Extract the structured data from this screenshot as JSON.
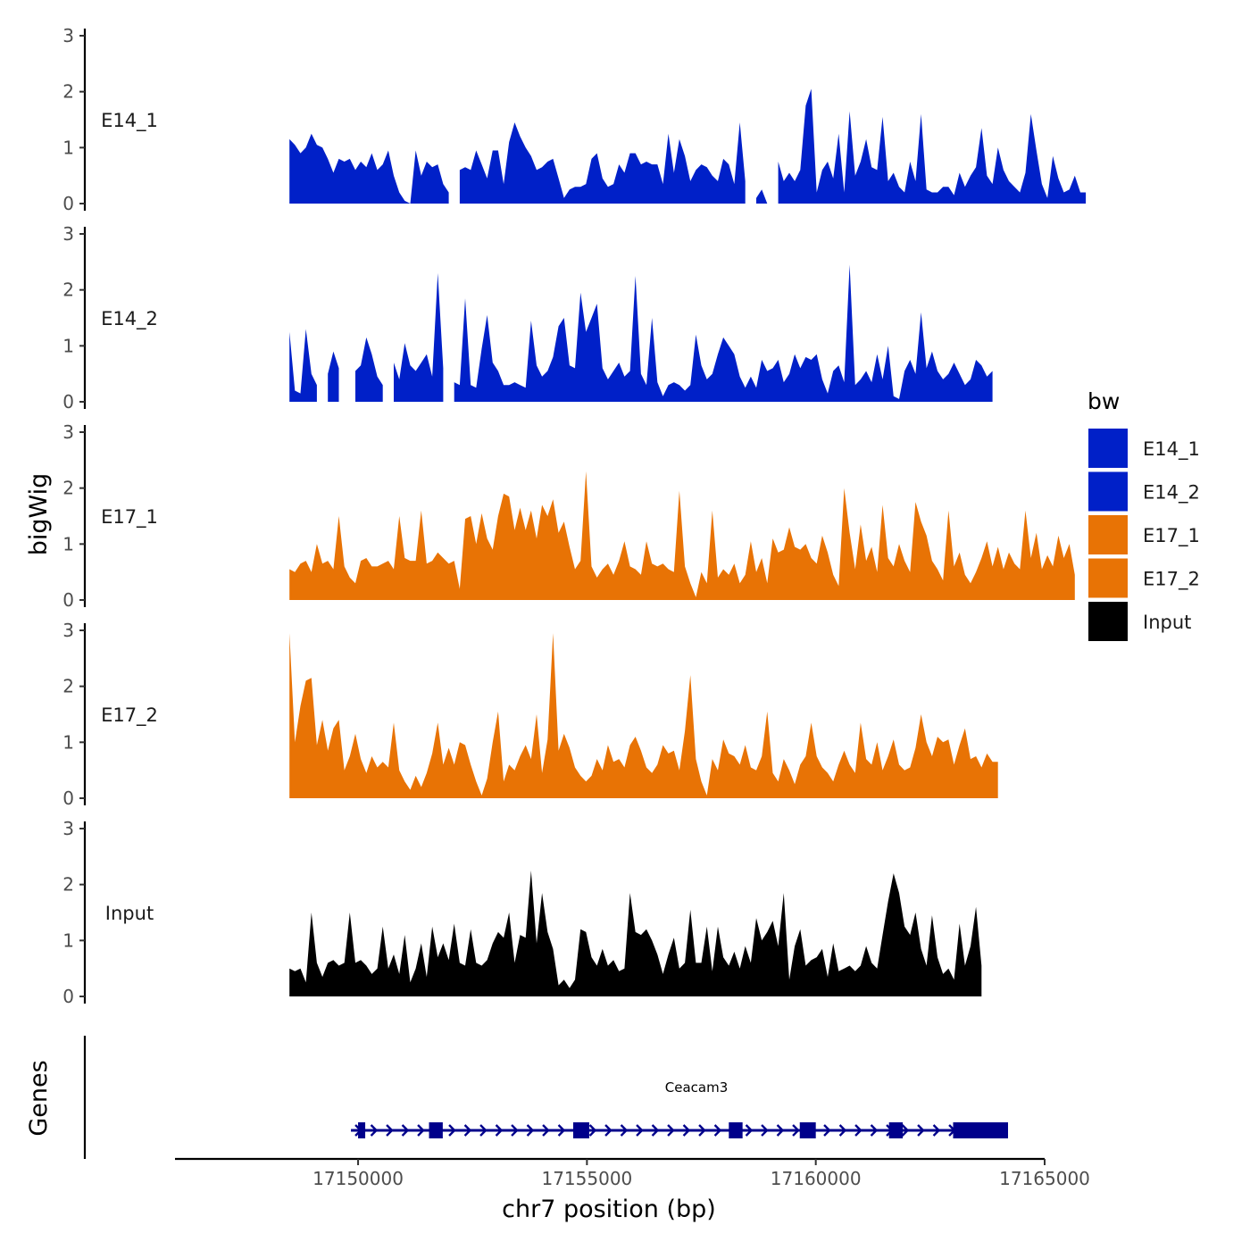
{
  "chart_data": {
    "type": "area",
    "y_axis_title": "bigWig",
    "genes_axis_title": "Genes",
    "x_axis_title": "chr7 position (bp)",
    "xlim": [
      17146000,
      17165000
    ],
    "x_ticks": [
      17150000,
      17155000,
      17160000,
      17165000
    ],
    "x_tick_labels": [
      "17150000",
      "17155000",
      "17160000",
      "17165000"
    ],
    "ylim": [
      0,
      3
    ],
    "y_ticks": [
      0,
      1,
      2,
      3
    ],
    "y_tick_labels": [
      "0",
      "1",
      "2",
      "3"
    ],
    "legend": {
      "title": "bw",
      "position": "right",
      "entries": [
        {
          "label": "E14_1",
          "color": "#0020C8"
        },
        {
          "label": "E14_2",
          "color": "#0020C8"
        },
        {
          "label": "E17_1",
          "color": "#E87305"
        },
        {
          "label": "E17_2",
          "color": "#E87305"
        },
        {
          "label": "Input",
          "color": "#000000"
        }
      ]
    },
    "x_start": 17148500,
    "x_step": 120,
    "tracks": [
      {
        "name": "E14_1",
        "color": "#0020C8",
        "values": [
          1.15,
          1.05,
          0.9,
          1.0,
          1.25,
          1.05,
          1.0,
          0.8,
          0.55,
          0.8,
          0.75,
          0.8,
          0.6,
          0.75,
          0.65,
          0.9,
          0.6,
          0.7,
          0.95,
          0.5,
          0.2,
          0.05,
          0.0,
          0.95,
          0.5,
          0.75,
          0.65,
          0.7,
          0.35,
          0.2,
          null,
          0.6,
          0.65,
          0.6,
          0.95,
          0.7,
          0.45,
          0.95,
          0.95,
          0.35,
          1.1,
          1.45,
          1.2,
          1.0,
          0.85,
          0.6,
          0.65,
          0.75,
          0.8,
          0.45,
          0.1,
          0.25,
          0.3,
          0.3,
          0.35,
          0.8,
          0.9,
          0.45,
          0.3,
          0.35,
          0.7,
          0.55,
          0.9,
          0.9,
          0.7,
          0.75,
          0.7,
          0.7,
          0.35,
          1.25,
          0.55,
          1.15,
          0.85,
          0.4,
          0.6,
          0.7,
          0.65,
          0.5,
          0.4,
          0.8,
          0.7,
          0.35,
          1.45,
          0.4,
          null,
          0.1,
          0.25,
          0.0,
          null,
          0.75,
          0.4,
          0.55,
          0.4,
          0.6,
          1.75,
          2.05,
          0.2,
          0.6,
          0.75,
          0.45,
          1.25,
          0.2,
          1.65,
          0.5,
          0.75,
          1.15,
          0.65,
          0.6,
          1.55,
          0.4,
          0.55,
          0.3,
          0.2,
          0.75,
          0.4,
          1.6,
          0.25,
          0.2,
          0.2,
          0.3,
          0.3,
          0.15,
          0.55,
          0.3,
          0.5,
          0.65,
          1.35,
          0.5,
          0.35,
          1.0,
          0.6,
          0.4,
          0.3,
          0.2,
          0.55,
          1.6,
          0.95,
          0.35,
          0.1,
          0.85,
          0.45,
          0.2,
          0.25,
          0.5,
          0.2,
          0.2
        ]
      },
      {
        "name": "E14_2",
        "color": "#0020C8",
        "values": [
          1.25,
          0.2,
          0.15,
          1.3,
          0.5,
          0.3,
          null,
          0.5,
          0.9,
          0.6,
          null,
          null,
          0.55,
          0.65,
          1.15,
          0.85,
          0.45,
          0.3,
          null,
          0.7,
          0.4,
          1.05,
          0.65,
          0.55,
          0.7,
          0.85,
          0.45,
          2.3,
          0.6,
          null,
          0.35,
          0.3,
          1.85,
          0.3,
          0.25,
          0.95,
          1.55,
          0.7,
          0.55,
          0.3,
          0.3,
          0.35,
          0.3,
          0.25,
          1.45,
          0.65,
          0.45,
          0.55,
          0.8,
          1.35,
          1.5,
          0.65,
          0.6,
          1.95,
          1.25,
          1.5,
          1.75,
          0.6,
          0.4,
          0.55,
          0.7,
          0.45,
          0.55,
          2.25,
          0.5,
          0.3,
          1.5,
          0.35,
          0.1,
          0.3,
          0.35,
          0.3,
          0.2,
          0.3,
          1.2,
          0.65,
          0.4,
          0.5,
          0.85,
          1.15,
          1.0,
          0.85,
          0.45,
          0.25,
          0.45,
          0.25,
          0.75,
          0.55,
          0.6,
          0.75,
          0.35,
          0.5,
          0.85,
          0.6,
          0.8,
          0.75,
          0.85,
          0.4,
          0.15,
          0.55,
          0.65,
          0.35,
          2.45,
          0.3,
          0.4,
          0.55,
          0.35,
          0.85,
          0.4,
          1.0,
          0.1,
          0.05,
          0.55,
          0.75,
          0.5,
          1.6,
          0.6,
          0.9,
          0.55,
          0.4,
          0.5,
          0.7,
          0.5,
          0.3,
          0.4,
          0.75,
          0.65,
          0.45,
          0.55
        ]
      },
      {
        "name": "E17_1",
        "color": "#E87305",
        "values": [
          0.55,
          0.5,
          0.65,
          0.7,
          0.5,
          1.0,
          0.65,
          0.7,
          0.55,
          1.5,
          0.6,
          0.4,
          0.3,
          0.7,
          0.75,
          0.6,
          0.6,
          0.65,
          0.7,
          0.55,
          1.5,
          0.75,
          0.7,
          0.7,
          1.6,
          0.65,
          0.7,
          0.85,
          0.75,
          0.65,
          0.7,
          0.2,
          1.45,
          1.5,
          1.0,
          1.55,
          1.1,
          0.9,
          1.5,
          1.9,
          1.85,
          1.25,
          1.65,
          1.25,
          1.6,
          1.1,
          1.7,
          1.5,
          1.8,
          1.2,
          1.4,
          0.95,
          0.55,
          0.7,
          2.3,
          0.6,
          0.4,
          0.55,
          0.65,
          0.45,
          0.7,
          1.05,
          0.6,
          0.55,
          0.45,
          1.05,
          0.65,
          0.6,
          0.65,
          0.55,
          0.5,
          1.95,
          0.6,
          0.3,
          0.05,
          0.5,
          0.3,
          1.6,
          0.4,
          0.55,
          0.45,
          0.65,
          0.3,
          0.45,
          1.05,
          0.5,
          0.75,
          0.3,
          1.1,
          0.85,
          0.9,
          1.3,
          0.95,
          0.9,
          1.0,
          0.75,
          0.65,
          1.15,
          0.85,
          0.45,
          0.25,
          2.0,
          1.2,
          0.55,
          1.35,
          0.7,
          0.95,
          0.5,
          1.7,
          0.75,
          0.6,
          1.0,
          0.7,
          0.5,
          1.75,
          1.4,
          1.15,
          0.7,
          0.55,
          0.35,
          1.6,
          0.6,
          0.85,
          0.45,
          0.3,
          0.5,
          0.75,
          1.05,
          0.6,
          0.95,
          0.55,
          0.85,
          0.65,
          0.55,
          1.6,
          0.75,
          1.2,
          0.55,
          0.8,
          0.6,
          1.15,
          0.75,
          1.0,
          0.45
        ]
      },
      {
        "name": "E17_2",
        "color": "#E87305",
        "values": [
          2.95,
          1.0,
          1.65,
          2.1,
          2.15,
          0.95,
          1.4,
          0.85,
          1.25,
          1.4,
          0.5,
          0.75,
          1.15,
          0.7,
          0.45,
          0.75,
          0.55,
          0.65,
          0.55,
          1.35,
          0.5,
          0.3,
          0.15,
          0.4,
          0.2,
          0.45,
          0.8,
          1.35,
          0.6,
          0.9,
          0.6,
          1.0,
          0.95,
          0.6,
          0.3,
          0.05,
          0.35,
          1.0,
          1.55,
          0.3,
          0.6,
          0.5,
          0.75,
          0.95,
          0.7,
          1.5,
          0.45,
          1.05,
          2.95,
          0.85,
          1.15,
          0.9,
          0.55,
          0.4,
          0.3,
          0.4,
          0.7,
          0.5,
          0.95,
          0.65,
          0.7,
          0.55,
          0.95,
          1.1,
          0.85,
          0.55,
          0.45,
          0.6,
          0.95,
          0.8,
          0.85,
          0.5,
          1.2,
          2.2,
          0.7,
          0.3,
          0.05,
          0.7,
          0.5,
          1.05,
          0.8,
          0.75,
          0.6,
          0.95,
          0.55,
          0.5,
          0.75,
          1.55,
          0.45,
          0.3,
          0.7,
          0.5,
          0.25,
          0.6,
          0.75,
          1.35,
          0.75,
          0.55,
          0.45,
          0.3,
          0.6,
          0.85,
          0.6,
          0.45,
          1.35,
          0.7,
          0.6,
          1.0,
          0.5,
          0.75,
          1.05,
          0.6,
          0.5,
          0.55,
          0.9,
          1.5,
          1.0,
          0.75,
          1.1,
          1.0,
          1.05,
          0.6,
          0.95,
          1.25,
          0.7,
          0.75,
          0.55,
          0.8,
          0.65,
          0.65
        ]
      },
      {
        "name": "Input",
        "color": "#000000",
        "values": [
          0.5,
          0.45,
          0.5,
          0.25,
          1.5,
          0.6,
          0.35,
          0.6,
          0.65,
          0.55,
          0.6,
          1.5,
          0.6,
          0.65,
          0.55,
          0.4,
          0.5,
          1.25,
          0.5,
          0.75,
          0.4,
          1.1,
          0.25,
          0.5,
          0.95,
          0.35,
          1.25,
          0.7,
          0.95,
          0.65,
          1.3,
          0.6,
          0.55,
          1.2,
          0.6,
          0.55,
          0.65,
          0.95,
          1.15,
          1.05,
          1.5,
          0.6,
          1.1,
          1.05,
          2.25,
          0.95,
          1.85,
          1.15,
          0.85,
          0.2,
          0.3,
          0.15,
          0.3,
          1.2,
          1.15,
          0.7,
          0.55,
          0.85,
          0.55,
          0.65,
          0.45,
          0.5,
          1.85,
          1.15,
          1.1,
          1.2,
          1.0,
          0.75,
          0.4,
          0.75,
          1.05,
          0.5,
          0.6,
          1.55,
          0.6,
          0.6,
          1.25,
          0.45,
          1.25,
          0.7,
          0.55,
          0.8,
          0.5,
          0.9,
          0.6,
          1.4,
          1.0,
          1.15,
          1.35,
          0.9,
          1.85,
          0.3,
          0.9,
          1.2,
          0.55,
          0.65,
          0.7,
          0.85,
          0.35,
          0.95,
          0.45,
          0.5,
          0.55,
          0.45,
          0.55,
          0.9,
          0.6,
          0.5,
          1.1,
          1.7,
          2.2,
          1.85,
          1.25,
          1.1,
          1.5,
          0.85,
          0.55,
          1.45,
          0.7,
          0.4,
          0.5,
          0.3,
          1.3,
          0.55,
          0.9,
          1.6,
          0.55
        ]
      }
    ],
    "genes": [
      {
        "name": "Ceacam3",
        "strand": "+",
        "start": 17150000,
        "end": 17164200,
        "exons": [
          [
            17150000,
            17150150
          ],
          [
            17151550,
            17151850
          ],
          [
            17154700,
            17155050
          ],
          [
            17158100,
            17158400
          ],
          [
            17159650,
            17160000
          ],
          [
            17161600,
            17161900
          ],
          [
            17163000,
            17164200
          ]
        ]
      }
    ]
  }
}
